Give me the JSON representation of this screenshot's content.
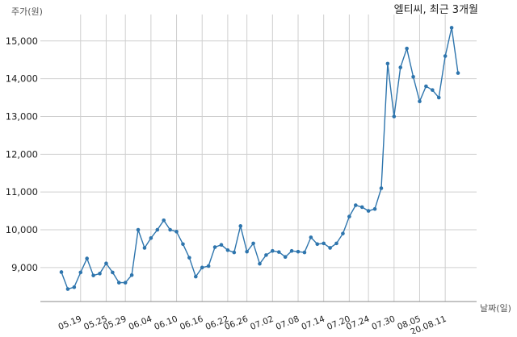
{
  "chart_data": {
    "type": "line",
    "title": "엘티씨, 최근 3개월",
    "ylabel": "주가(원)",
    "xlabel": "날짜(일)",
    "ylim": [
      8100,
      15700
    ],
    "yticks": [
      9000,
      10000,
      11000,
      12000,
      13000,
      14000,
      15000
    ],
    "ytick_labels": [
      "9,000",
      "10,000",
      "11,000",
      "12,000",
      "13,000",
      "14,000",
      "15,000"
    ],
    "xtick_labels": [
      "05.19",
      "05.25",
      "05.29",
      "06.04",
      "06.10",
      "06.16",
      "06.22",
      "06.26",
      "07.02",
      "07.08",
      "07.14",
      "07.20",
      "07.24",
      "07.30",
      "08.05",
      "20.08.11"
    ],
    "xtick_index": [
      3,
      7,
      10,
      14,
      18,
      22,
      26,
      29,
      33,
      37,
      41,
      45,
      48,
      52,
      56,
      60
    ],
    "grid": true,
    "color": "#2e75ad",
    "series": [
      {
        "values": [
          8880,
          8430,
          8480,
          8870,
          9240,
          8790,
          8840,
          9110,
          8870,
          8600,
          8600,
          8800,
          10000,
          9520,
          9780,
          10000,
          10250,
          10000,
          9950,
          9620,
          9260,
          8760,
          9000,
          9040,
          9540,
          9600,
          9460,
          9400,
          10100,
          9420,
          9640,
          9100,
          9330,
          9440,
          9410,
          9280,
          9440,
          9420,
          9400,
          9800,
          9620,
          9640,
          9520,
          9640,
          9900,
          10350,
          10650,
          10600,
          10500,
          10550,
          11100,
          14400,
          13000,
          14300,
          14800,
          14050,
          13400,
          13800,
          13700,
          13500,
          14600,
          15350,
          14150
        ]
      }
    ]
  }
}
